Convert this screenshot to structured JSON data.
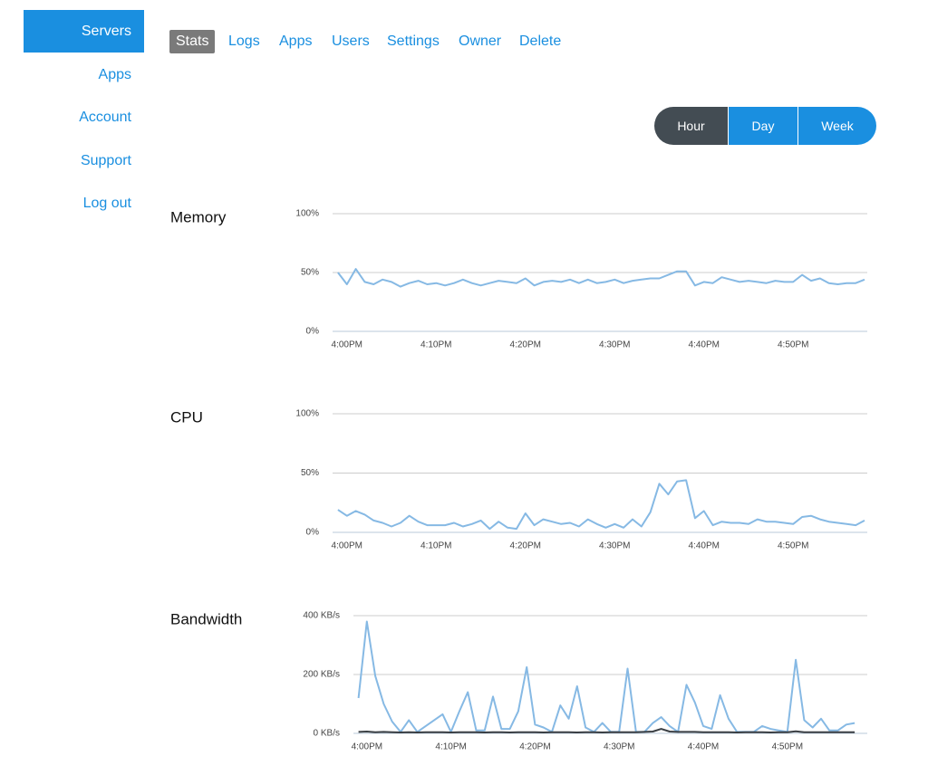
{
  "nav": [
    "Servers",
    "Apps",
    "Account",
    "Support",
    "Log out"
  ],
  "nav_active": 0,
  "tabs": [
    "Stats",
    "Logs",
    "Apps",
    "Users",
    "Settings",
    "Owner",
    "Delete"
  ],
  "tab_active": 0,
  "ranges": [
    "Hour",
    "Day",
    "Week"
  ],
  "range_active": 0,
  "charts": [
    {
      "type": "line",
      "title": "Memory",
      "x": [
        -1,
        0,
        1,
        2,
        3,
        4,
        5,
        6,
        7,
        8,
        9,
        10,
        11,
        12,
        13,
        14,
        15,
        16,
        17,
        18,
        19,
        20,
        21,
        22,
        23,
        24,
        25,
        26,
        27,
        28,
        29,
        30,
        31,
        32,
        33,
        34,
        35,
        36,
        37,
        38,
        39,
        40,
        41,
        42,
        43,
        44,
        45,
        46,
        47,
        48,
        49,
        50,
        51,
        52,
        53,
        54,
        55,
        56,
        57,
        58
      ],
      "xlim": [
        -1.6,
        58.3
      ],
      "xticks": [
        {
          "value": 0,
          "label": "4:00PM"
        },
        {
          "value": 10,
          "label": "4:10PM"
        },
        {
          "value": 20,
          "label": "4:20PM"
        },
        {
          "value": 30,
          "label": "4:30PM"
        },
        {
          "value": 40,
          "label": "4:40PM"
        },
        {
          "value": 50,
          "label": "4:50PM"
        }
      ],
      "ylim": [
        0,
        100
      ],
      "yticks": [
        {
          "value": 0,
          "label": "0%"
        },
        {
          "value": 50,
          "label": "50%"
        },
        {
          "value": 100,
          "label": "100%"
        }
      ],
      "series": [
        {
          "color": "#86b9e4",
          "values": [
            50,
            40,
            53,
            42,
            40,
            44,
            42,
            38,
            41,
            43,
            40,
            41,
            39,
            41,
            44,
            41,
            39,
            41,
            43,
            42,
            41,
            45,
            39,
            42,
            43,
            42,
            44,
            41,
            44,
            41,
            42,
            44,
            41,
            43,
            44,
            45,
            45,
            48,
            51,
            51,
            39,
            42,
            41,
            46,
            44,
            42,
            43,
            42,
            41,
            43,
            42,
            42,
            48,
            43,
            45,
            41,
            40,
            41,
            41,
            44
          ]
        }
      ]
    },
    {
      "type": "line",
      "title": "CPU",
      "x": [
        -1,
        0,
        1,
        2,
        3,
        4,
        5,
        6,
        7,
        8,
        9,
        10,
        11,
        12,
        13,
        14,
        15,
        16,
        17,
        18,
        19,
        20,
        21,
        22,
        23,
        24,
        25,
        26,
        27,
        28,
        29,
        30,
        31,
        32,
        33,
        34,
        35,
        36,
        37,
        38,
        39,
        40,
        41,
        42,
        43,
        44,
        45,
        46,
        47,
        48,
        49,
        50,
        51,
        52,
        53,
        54,
        55,
        56,
        57,
        58
      ],
      "xlim": [
        -1.6,
        58.3
      ],
      "xticks": [
        {
          "value": 0,
          "label": "4:00PM"
        },
        {
          "value": 10,
          "label": "4:10PM"
        },
        {
          "value": 20,
          "label": "4:20PM"
        },
        {
          "value": 30,
          "label": "4:30PM"
        },
        {
          "value": 40,
          "label": "4:40PM"
        },
        {
          "value": 50,
          "label": "4:50PM"
        }
      ],
      "ylim": [
        0,
        100
      ],
      "yticks": [
        {
          "value": 0,
          "label": "0%"
        },
        {
          "value": 50,
          "label": "50%"
        },
        {
          "value": 100,
          "label": "100%"
        }
      ],
      "series": [
        {
          "color": "#86b9e4",
          "values": [
            19,
            14,
            18,
            15,
            10,
            8,
            5,
            8,
            14,
            9,
            6,
            6,
            6,
            8,
            5,
            7,
            10,
            3,
            9,
            4,
            3,
            16,
            6,
            11,
            9,
            7,
            8,
            5,
            11,
            7,
            4,
            7,
            4,
            11,
            5,
            17,
            41,
            32,
            43,
            44,
            12,
            18,
            6,
            9,
            8,
            8,
            7,
            11,
            9,
            9,
            8,
            7,
            13,
            14,
            11,
            9,
            8,
            7,
            6,
            10
          ]
        }
      ]
    },
    {
      "type": "line",
      "title": "Bandwidth",
      "x": [
        -1,
        0,
        1,
        2,
        3,
        4,
        5,
        6,
        7,
        8,
        9,
        10,
        11,
        12,
        13,
        14,
        15,
        16,
        17,
        18,
        19,
        20,
        21,
        22,
        23,
        24,
        25,
        26,
        27,
        28,
        29,
        30,
        31,
        32,
        33,
        34,
        35,
        36,
        37,
        38,
        39,
        40,
        41,
        42,
        43,
        44,
        45,
        46,
        47,
        48,
        49,
        50,
        51,
        52,
        53,
        54,
        55,
        56,
        57,
        58
      ],
      "xlim": [
        -1.6,
        59.5
      ],
      "xticks": [
        {
          "value": 0,
          "label": "4:00PM"
        },
        {
          "value": 10,
          "label": "4:10PM"
        },
        {
          "value": 20,
          "label": "4:20PM"
        },
        {
          "value": 30,
          "label": "4:30PM"
        },
        {
          "value": 40,
          "label": "4:40PM"
        },
        {
          "value": 50,
          "label": "4:50PM"
        }
      ],
      "ylim": [
        0,
        400
      ],
      "yticks": [
        {
          "value": 0,
          "label": "0 KB/s"
        },
        {
          "value": 200,
          "label": "200 KB/s"
        },
        {
          "value": 400,
          "label": "400 KB/s"
        }
      ],
      "series": [
        {
          "color": "#86b9e4",
          "values": [
            120,
            380,
            195,
            100,
            40,
            5,
            45,
            5,
            25,
            45,
            65,
            5,
            75,
            140,
            10,
            10,
            125,
            15,
            15,
            75,
            225,
            30,
            20,
            5,
            95,
            50,
            160,
            20,
            5,
            35,
            5,
            5,
            220,
            5,
            5,
            35,
            55,
            25,
            5,
            165,
            105,
            25,
            15,
            130,
            50,
            5,
            5,
            5,
            25,
            15,
            10,
            5,
            250,
            45,
            20,
            50,
            10,
            10,
            30,
            35
          ]
        },
        {
          "color": "#3a3f44",
          "values": [
            5,
            6,
            4,
            5,
            4,
            3,
            4,
            3,
            4,
            4,
            4,
            3,
            4,
            4,
            4,
            3,
            4,
            4,
            3,
            4,
            4,
            4,
            3,
            4,
            4,
            4,
            3,
            4,
            4,
            3,
            4,
            4,
            4,
            4,
            5,
            6,
            15,
            6,
            5,
            5,
            5,
            4,
            4,
            4,
            4,
            3,
            4,
            4,
            4,
            3,
            4,
            4,
            7,
            4,
            4,
            4,
            4,
            4,
            4,
            4
          ]
        }
      ]
    }
  ]
}
